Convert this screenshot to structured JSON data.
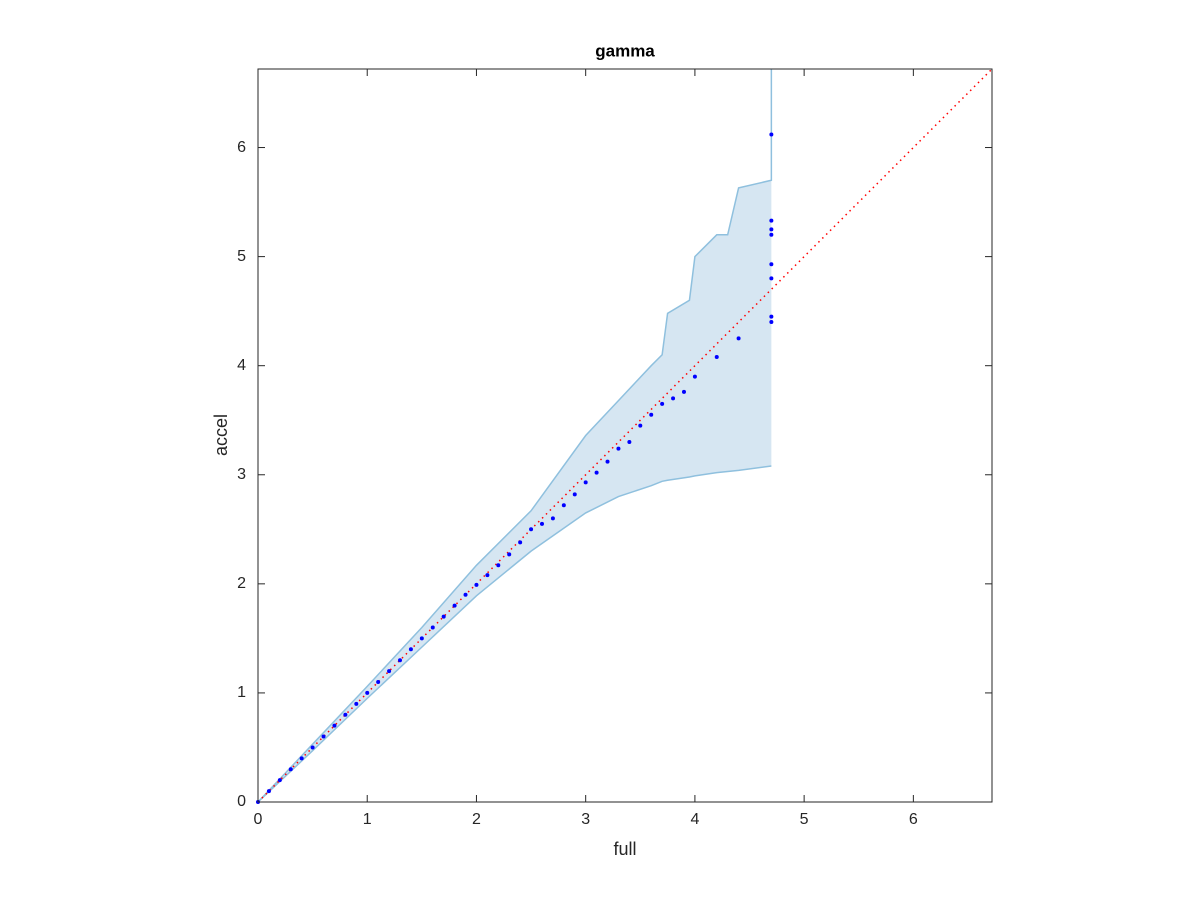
{
  "chart_data": {
    "type": "qq",
    "title": "gamma",
    "x_label": "full",
    "y_label": "accel",
    "xlim": [
      0,
      6.72
    ],
    "ylim": [
      0,
      6.72
    ],
    "xticks": [
      0,
      1,
      2,
      3,
      4,
      5,
      6
    ],
    "yticks": [
      0,
      1,
      2,
      3,
      4,
      5,
      6
    ],
    "points": {
      "color": "#0000ff",
      "x": [
        0,
        0.1,
        0.2,
        0.3,
        0.4,
        0.5,
        0.6,
        0.7,
        0.8,
        0.9,
        1.0,
        1.1,
        1.2,
        1.3,
        1.4,
        1.5,
        1.6,
        1.7,
        1.8,
        1.9,
        2.0,
        2.1,
        2.2,
        2.3,
        2.4,
        2.5,
        2.6,
        2.7,
        2.8,
        2.9,
        3.0,
        3.1,
        3.2,
        3.3,
        3.4,
        3.5,
        3.6,
        3.7,
        3.8,
        3.9,
        4.0,
        4.2,
        4.4,
        4.7,
        4.7,
        4.7,
        4.7,
        4.7,
        4.7,
        4.7,
        4.7
      ],
      "y": [
        0,
        0.1,
        0.2,
        0.3,
        0.4,
        0.5,
        0.6,
        0.7,
        0.8,
        0.9,
        1.0,
        1.1,
        1.2,
        1.3,
        1.4,
        1.5,
        1.6,
        1.7,
        1.8,
        1.9,
        1.99,
        2.08,
        2.17,
        2.27,
        2.38,
        2.5,
        2.55,
        2.6,
        2.72,
        2.82,
        2.93,
        3.02,
        3.12,
        3.24,
        3.3,
        3.45,
        3.55,
        3.65,
        3.7,
        3.76,
        3.9,
        4.08,
        4.25,
        4.4,
        4.45,
        4.8,
        4.93,
        5.2,
        5.25,
        5.33,
        6.12
      ]
    },
    "band": {
      "fill": "#d6e6f2",
      "edge": "#8fc0de",
      "x": [
        0,
        0.5,
        1,
        1.5,
        2,
        2.5,
        3,
        3.3,
        3.6,
        3.7,
        3.75,
        3.95,
        4.0,
        4.2,
        4.3,
        4.4,
        4.7,
        4.7
      ],
      "upper": [
        0,
        0.53,
        1.06,
        1.6,
        2.17,
        2.67,
        3.36,
        3.68,
        4.0,
        4.1,
        4.48,
        4.6,
        5.0,
        5.2,
        5.2,
        5.63,
        5.7,
        6.72
      ],
      "lower": [
        0,
        0.47,
        0.95,
        1.42,
        1.89,
        2.3,
        2.65,
        2.8,
        2.9,
        2.94,
        2.95,
        2.98,
        2.99,
        3.02,
        3.03,
        3.04,
        3.08,
        3.08
      ]
    },
    "reference_line": {
      "color": "#ff0000",
      "x": [
        0,
        6.72
      ],
      "y": [
        0,
        6.72
      ]
    }
  }
}
